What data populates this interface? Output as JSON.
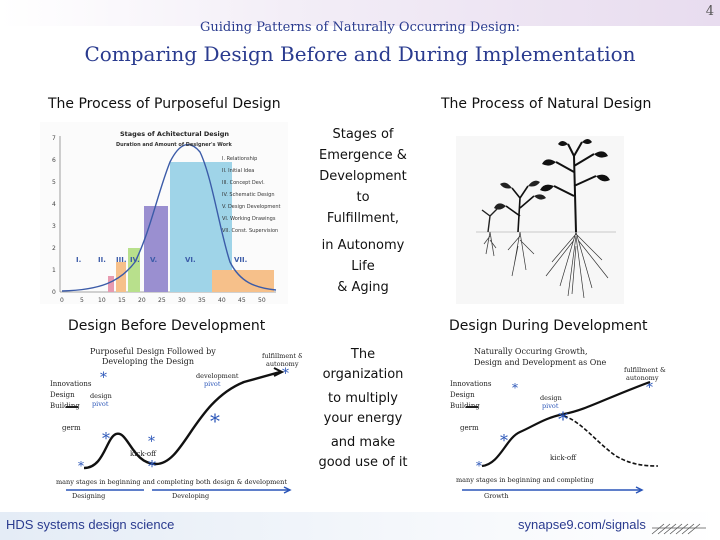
{
  "page_number": "4",
  "header": {
    "subtitle": "Guiding Patterns of Naturally Occurring Design:",
    "title": "Comparing Design Before and During Implementation"
  },
  "left_column": {
    "heading": "The Process of Purposeful Design",
    "caption": "Design Before Development"
  },
  "right_column": {
    "heading": "The Process of Natural Design",
    "caption": "Design During Development"
  },
  "middle_text": {
    "top": [
      "Stages of",
      "Emergence &",
      "Development",
      "to",
      "Fulfillment,"
    ],
    "mid": [
      "in Autonomy",
      "Life",
      "& Aging"
    ],
    "bottom": [
      "The",
      "organization",
      "to multiply",
      "your energy",
      "and make",
      "good use of it"
    ]
  },
  "stages_chart": {
    "title": "Stages of Achitectural Design",
    "subtitle": "Duration and Amount of Designer's Work",
    "legend": [
      "I. Relationship",
      "II. Initial Idea",
      "III. Concept Devl.",
      "IV. Schematic Design",
      "V. Design Development",
      "VI. Working Drawings",
      "VII. Const. Supervision"
    ],
    "stage_labels": [
      "I.",
      "II.",
      "III.",
      "IV.",
      "V.",
      "VI.",
      "VII."
    ],
    "y_ticks": [
      "0",
      "1",
      "2",
      "3",
      "4",
      "5",
      "6",
      "7"
    ],
    "x_ticks": [
      "0",
      "5",
      "10",
      "15",
      "20",
      "25",
      "30",
      "35",
      "40",
      "45",
      "50"
    ]
  },
  "sketch_left": {
    "title_line1": "Purposeful Design Followed by",
    "title_line2": "Developing the Design",
    "fulfillment": "fulfillment &",
    "autonomy": "autonomy",
    "innovations": "Innovations",
    "design": "Design",
    "building": "Building",
    "design_pivot": "design",
    "pivot": "pivot",
    "dev_pivot1": "development",
    "dev_pivot2": "pivot",
    "germ": "germ",
    "kickoff": "kick-off",
    "stages": "many stages in beginning and completing both design & development",
    "designing": "Designing",
    "developing": "Developing"
  },
  "sketch_right": {
    "title_line1": "Naturally Occuring Growth,",
    "title_line2": "Design and Development as One",
    "fulfillment": "fulfillment &",
    "autonomy": "autonomy",
    "innovations": "Innovations",
    "design": "Design",
    "building": "Building",
    "design_pivot": "design",
    "pivot": "pivot",
    "germ": "germ",
    "kickoff": "kick-off",
    "stages": "many stages in beginning and completing",
    "growth": "Growth"
  },
  "footer": {
    "left": "HDS systems design science",
    "right": "synapse9.com/signals"
  },
  "colors": {
    "title_blue": "#2a3b8f",
    "chart_blue": "#9fd4e8",
    "chart_curve": "#3b5ba8",
    "chart_purple": "#9a8fd0",
    "chart_green": "#b8e08c",
    "chart_pink": "#e79ab0",
    "chart_orange": "#f6c08a",
    "sketch_blue": "#2a55b8"
  }
}
